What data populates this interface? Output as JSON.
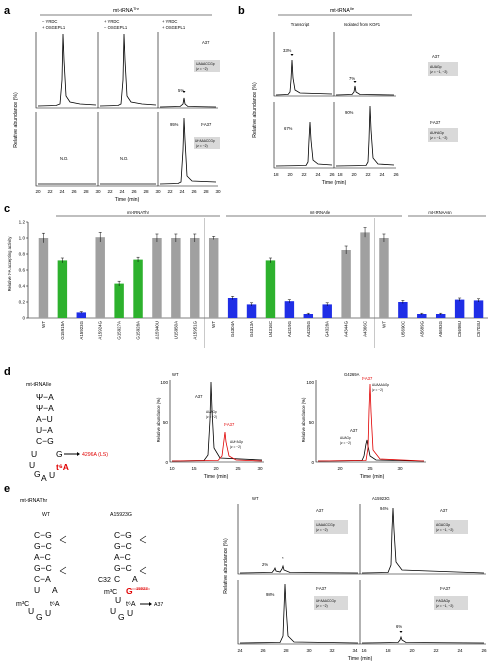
{
  "panel_labels": {
    "a": "a",
    "b": "b",
    "c": "c",
    "d": "d",
    "e": "e"
  },
  "panel_a": {
    "header": "mt-tRNA",
    "header_sup": "Thr",
    "conditions": [
      {
        "l1": "− YRDC",
        "l2": "+ OSGEPL1"
      },
      {
        "l1": "+ YRDC",
        "l2": "− OSGEPL1"
      },
      {
        "l1": "+ YRDC",
        "l2": "+ OSGEPL1"
      }
    ],
    "row_top_label": "A37",
    "row_top_box1": "UAAACCGp",
    "row_top_box2": "(z = −2)",
    "row_bottom_label": "t⁶A37",
    "row_bottom_box1": "Ut⁶AAACCGp",
    "row_bottom_box2": "(z = −2)",
    "nd1": "N.D.",
    "nd2": "N.D.",
    "pct_top": "5%",
    "pct_bottom": "95%",
    "ylabel": "Relative abundance (%)",
    "xlabel": "Time (min)",
    "xticks": [
      "20",
      "22",
      "24",
      "26",
      "28",
      "30"
    ]
  },
  "panel_b": {
    "header": "mt-tRNA",
    "header_sup": "Ile",
    "col1": "Transcript",
    "col2": "Isolated from KO#1",
    "pct_top1": "33%",
    "pct_top2": "7%",
    "pct_bottom1": "67%",
    "pct_bottom2": "90%",
    "row_top_label": "A37",
    "row_top_box1": "AUAGp",
    "row_top_box2": "(z = −1, −2)",
    "row_bottom_label": "t⁶A37",
    "row_bottom_box1": "AUt⁶AGp",
    "row_bottom_box2": "(z = −1, −2)",
    "ylabel": "Relative abundance (%)",
    "xlabel": "Time (min)",
    "xticks": [
      "18",
      "20",
      "22",
      "24",
      "26"
    ]
  },
  "panel_c": {
    "ylabel": "Relative t⁶A accepting activity",
    "groups": [
      "mt-tRNAThr",
      "mt-tRNAIle",
      "mt-tRNAAsn"
    ],
    "chart_data": {
      "type": "bar",
      "ylim": [
        0,
        1.2
      ],
      "yticks": [
        "0",
        "0.2",
        "0.4",
        "0.6",
        "0.8",
        "1.0",
        "1.2"
      ],
      "categories": [
        "WT",
        "G15915A",
        "A15923G",
        "A15924G",
        "G15927A",
        "G15928A",
        "Δ15940U",
        "U15950A",
        "A15951G",
        "WT",
        "G4304A",
        "G4313A",
        "U4316C",
        "A4319G",
        "A4325G",
        "G4328A",
        "A4344G",
        "A4366C",
        "WT",
        "U5690C",
        "A5689G",
        "A5693G",
        "C5698U",
        "C5703U"
      ],
      "values": [
        1.0,
        0.72,
        0.07,
        1.01,
        0.43,
        0.73,
        1.0,
        1.0,
        1.0,
        1.0,
        0.25,
        0.17,
        0.72,
        0.21,
        0.05,
        0.17,
        0.85,
        1.07,
        1.0,
        0.2,
        0.05,
        0.05,
        0.23,
        0.22
      ],
      "errors": [
        0.06,
        0.03,
        0.01,
        0.06,
        0.03,
        0.03,
        0.05,
        0.05,
        0.05,
        0.02,
        0.02,
        0.02,
        0.03,
        0.02,
        0.01,
        0.02,
        0.05,
        0.06,
        0.05,
        0.02,
        0.01,
        0.01,
        0.02,
        0.02
      ],
      "colors": [
        "gray",
        "green",
        "blue",
        "gray",
        "green",
        "green",
        "gray",
        "gray",
        "gray",
        "gray",
        "blue",
        "blue",
        "green",
        "blue",
        "blue",
        "blue",
        "gray",
        "gray",
        "gray",
        "blue",
        "blue",
        "blue",
        "blue",
        "blue"
      ]
    }
  },
  "panel_d": {
    "trna_label": "mt-tRNAIle",
    "mutation": "4296A (LS)",
    "t6a": "t⁶A",
    "chart_titles": [
      "WT",
      "G4269A"
    ],
    "peak_a37": "A37",
    "peak_t6a37": "t⁶A37",
    "box_a": "AUAGp",
    "box_a2": "(z = −2)",
    "box_t": "AUt⁶AGp",
    "box_t2": "(z = −2)",
    "box_aa": "AUAAAAGp",
    "box_aa2": "(z = −2)",
    "ylabel": "Relative abundance (%)",
    "xlabel": "Time (min)",
    "xticks1": [
      "10",
      "15",
      "20",
      "25",
      "30"
    ],
    "xticks2": [
      "20",
      "25",
      "30"
    ]
  },
  "panel_e": {
    "trna_label": "mt-tRNAThr",
    "wt": "WT",
    "mut": "A15923G",
    "c32": "C32",
    "m3c": "m³C",
    "num": "15923",
    "t6a": "t⁶A",
    "a37": "A37",
    "chart_titles": [
      "WT",
      "A15923G"
    ],
    "box_top_left": "UAAACCGp",
    "box_top_right": "AGACGp",
    "box_z2": "(z = −2)",
    "box_z12": "(z = −1, −2)",
    "box_bottom_left": "Ut⁶AAACCGp",
    "box_bottom_right": "t⁶AGAGp",
    "row_top_label": "A37",
    "row_bottom_label": "t⁶A37",
    "pct_tl": "2%",
    "pct_tr": "94%",
    "pct_bl": "98%",
    "pct_br": "6%",
    "star": "*",
    "ylabel": "Relative abundance (%)",
    "xlabel": "Time (min)",
    "xticks1": [
      "24",
      "26",
      "28",
      "30",
      "32",
      "34"
    ],
    "xticks2": [
      "16",
      "18",
      "20",
      "22",
      "24",
      "26"
    ]
  }
}
